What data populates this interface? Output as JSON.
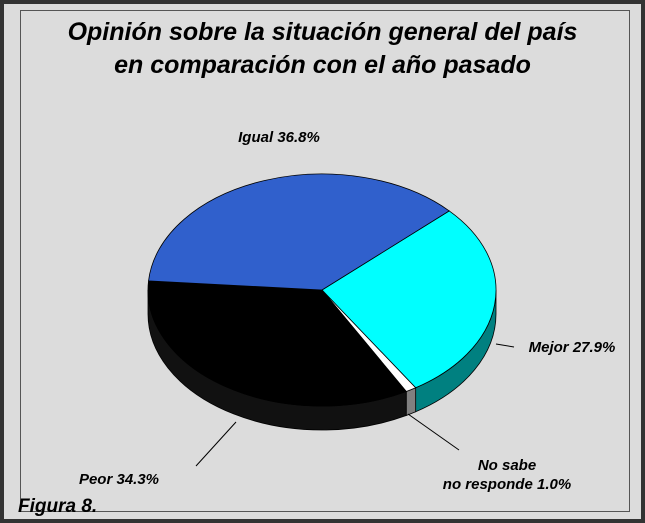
{
  "chart_data": {
    "type": "pie",
    "title": "Opinión sobre la situación general del país\nen comparación con el año pasado",
    "categories": [
      "Mejor",
      "No sabe\nno responde",
      "Peor",
      "Igual"
    ],
    "values": [
      27.9,
      1.0,
      34.3,
      36.8
    ],
    "value_labels": [
      "27.9%",
      "1.0%",
      "34.3%",
      "36.8%"
    ],
    "colors": [
      "#00ffff",
      "#ffffff",
      "#000000",
      "#3060cc"
    ],
    "side_colors": [
      "#008080",
      "#808080",
      "#111111",
      "#1a3a80"
    ],
    "caption": "Figura 8."
  }
}
